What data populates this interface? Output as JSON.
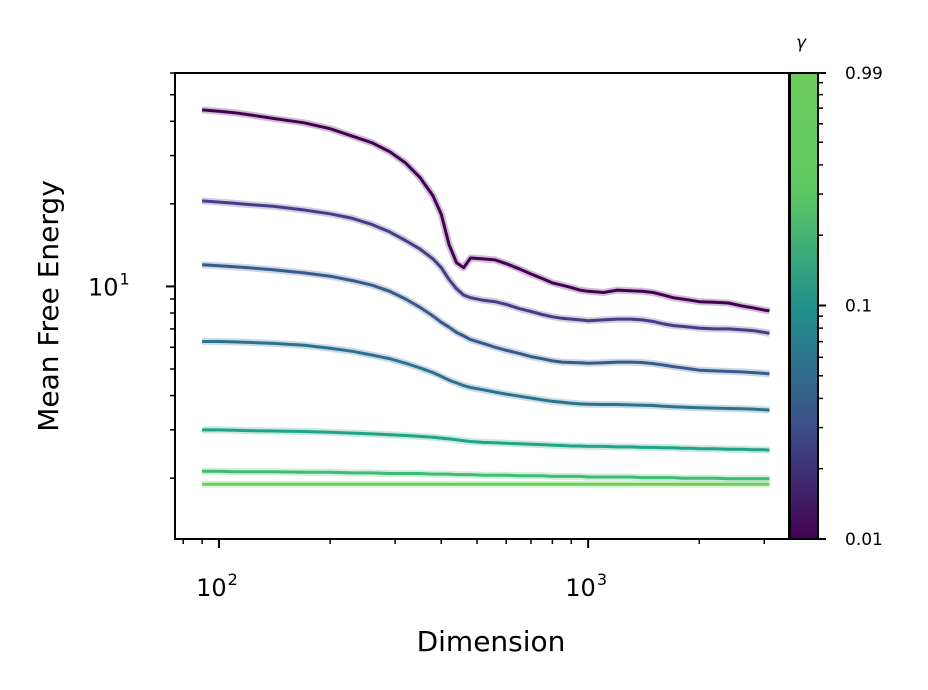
{
  "chart_data": {
    "type": "line",
    "xlabel": "Dimension",
    "ylabel": "Mean Free Energy",
    "xscale": "log",
    "yscale": "log",
    "xlim": [
      76,
      3500
    ],
    "ylim": [
      1.2,
      60
    ],
    "x_ticks": [
      {
        "value": 100,
        "base": "10",
        "exp": "2"
      },
      {
        "value": 1000,
        "base": "10",
        "exp": "3"
      }
    ],
    "y_ticks": [
      {
        "value": 10,
        "base": "10",
        "exp": "1"
      }
    ],
    "colorbar": {
      "label": "γ",
      "scale": "log",
      "range": [
        0.01,
        0.99
      ],
      "tick_labels": [
        "0.99",
        "0.1",
        "0.01"
      ],
      "tick_values": [
        0.99,
        0.1,
        0.01
      ],
      "colormap": [
        "#440154",
        "#3b528b",
        "#21918c",
        "#5ec962",
        "#6ccd5a"
      ]
    },
    "grid": false,
    "x": [
      90,
      100,
      110,
      120,
      140,
      170,
      200,
      230,
      260,
      290,
      320,
      350,
      380,
      400,
      420,
      440,
      460,
      480,
      520,
      560,
      600,
      650,
      700,
      750,
      800,
      850,
      900,
      950,
      1000,
      1100,
      1200,
      1300,
      1400,
      1500,
      1600,
      1700,
      1800,
      1900,
      2000,
      2200,
      2400,
      2600,
      2800,
      3000,
      3100
    ],
    "series": [
      {
        "color": "#440154",
        "values": [
          44,
          43.5,
          43,
          42.3,
          41,
          39.5,
          37.6,
          35.3,
          33.4,
          31,
          28.2,
          25,
          21.4,
          18.3,
          14.2,
          12.2,
          11.7,
          12.7,
          12.6,
          12.5,
          12.1,
          11.6,
          11.1,
          10.7,
          10.3,
          10.1,
          9.9,
          9.7,
          9.6,
          9.5,
          9.7,
          9.65,
          9.6,
          9.5,
          9.3,
          9.1,
          9.0,
          8.9,
          8.8,
          8.75,
          8.7,
          8.5,
          8.35,
          8.2,
          8.15
        ]
      },
      {
        "color": "#433e85",
        "values": [
          20.5,
          20.3,
          20.1,
          19.9,
          19.6,
          19,
          18.4,
          17.7,
          16.8,
          15.8,
          14.7,
          13.7,
          12.6,
          11.7,
          10.6,
          9.8,
          9.3,
          9.1,
          8.9,
          8.8,
          8.6,
          8.3,
          8.1,
          7.9,
          7.75,
          7.65,
          7.6,
          7.55,
          7.5,
          7.55,
          7.6,
          7.6,
          7.55,
          7.45,
          7.3,
          7.2,
          7.15,
          7.1,
          7.05,
          7.0,
          7.0,
          6.95,
          6.9,
          6.8,
          6.75
        ]
      },
      {
        "color": "#375a8c",
        "values": [
          12,
          11.9,
          11.8,
          11.7,
          11.5,
          11.2,
          10.9,
          10.5,
          10.1,
          9.6,
          9.0,
          8.4,
          7.8,
          7.4,
          7.1,
          6.8,
          6.6,
          6.4,
          6.2,
          6.0,
          5.85,
          5.7,
          5.55,
          5.45,
          5.35,
          5.3,
          5.28,
          5.27,
          5.25,
          5.27,
          5.3,
          5.3,
          5.28,
          5.23,
          5.17,
          5.1,
          5.05,
          5.0,
          4.95,
          4.92,
          4.9,
          4.88,
          4.85,
          4.82,
          4.8
        ]
      },
      {
        "color": "#2c728e",
        "values": [
          6.3,
          6.3,
          6.28,
          6.25,
          6.2,
          6.1,
          5.95,
          5.8,
          5.62,
          5.45,
          5.25,
          5.05,
          4.85,
          4.7,
          4.55,
          4.45,
          4.35,
          4.28,
          4.2,
          4.12,
          4.05,
          3.98,
          3.92,
          3.86,
          3.81,
          3.78,
          3.75,
          3.73,
          3.72,
          3.71,
          3.71,
          3.7,
          3.69,
          3.68,
          3.66,
          3.64,
          3.63,
          3.62,
          3.61,
          3.6,
          3.59,
          3.58,
          3.57,
          3.55,
          3.54
        ]
      },
      {
        "color": "#20a386",
        "values": [
          3.0,
          3.0,
          2.99,
          2.98,
          2.97,
          2.96,
          2.94,
          2.92,
          2.9,
          2.88,
          2.86,
          2.84,
          2.82,
          2.8,
          2.78,
          2.76,
          2.74,
          2.72,
          2.7,
          2.69,
          2.68,
          2.67,
          2.66,
          2.65,
          2.64,
          2.63,
          2.62,
          2.62,
          2.61,
          2.61,
          2.6,
          2.6,
          2.59,
          2.59,
          2.58,
          2.58,
          2.57,
          2.57,
          2.56,
          2.56,
          2.55,
          2.55,
          2.54,
          2.54,
          2.53
        ]
      },
      {
        "color": "#3fbc73",
        "values": [
          2.12,
          2.12,
          2.11,
          2.11,
          2.11,
          2.1,
          2.1,
          2.09,
          2.09,
          2.08,
          2.08,
          2.08,
          2.07,
          2.07,
          2.07,
          2.06,
          2.06,
          2.06,
          2.05,
          2.05,
          2.05,
          2.04,
          2.04,
          2.04,
          2.03,
          2.03,
          2.03,
          2.03,
          2.02,
          2.02,
          2.02,
          2.02,
          2.01,
          2.01,
          2.01,
          2.01,
          2.0,
          2.0,
          2.0,
          2.0,
          1.99,
          1.99,
          1.99,
          1.99,
          1.99
        ]
      },
      {
        "color": "#6ccd5a",
        "values": [
          1.9,
          1.9,
          1.9,
          1.9,
          1.9,
          1.9,
          1.9,
          1.9,
          1.9,
          1.9,
          1.9,
          1.9,
          1.9,
          1.9,
          1.9,
          1.9,
          1.9,
          1.9,
          1.9,
          1.9,
          1.9,
          1.9,
          1.9,
          1.9,
          1.9,
          1.9,
          1.9,
          1.9,
          1.9,
          1.9,
          1.9,
          1.9,
          1.9,
          1.9,
          1.9,
          1.9,
          1.9,
          1.9,
          1.9,
          1.9,
          1.9,
          1.9,
          1.9,
          1.9,
          1.9
        ]
      }
    ]
  }
}
